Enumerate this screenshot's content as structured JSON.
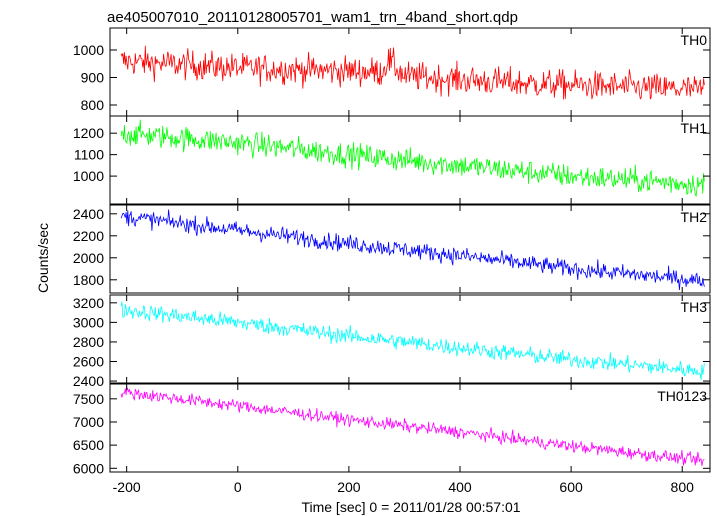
{
  "chart_data": {
    "type": "line",
    "title": "ae405007010_20110128005701_wam1_trn_4band_short.qdp",
    "xlabel": "Time [sec] 0 = 2011/01/28 00:57:01",
    "ylabel": "Counts/sec",
    "xlim": [
      -230,
      850
    ],
    "xticks": [
      -200,
      0,
      200,
      400,
      600,
      800
    ],
    "grid": false,
    "panels": [
      {
        "name": "TH0",
        "color": "#ff0000",
        "ylim": [
          760,
          1080
        ],
        "yticks": [
          800,
          900,
          1000
        ],
        "trend": [
          [
            -210,
            960
          ],
          [
            0,
            935
          ],
          [
            260,
            920
          ],
          [
            270,
            965
          ],
          [
            300,
            905
          ],
          [
            500,
            880
          ],
          [
            700,
            865
          ],
          [
            840,
            855
          ]
        ],
        "noise": 38
      },
      {
        "name": "TH1",
        "color": "#00ff00",
        "ylim": [
          870,
          1280
        ],
        "yticks": [
          1000,
          1100,
          1200
        ],
        "trend": [
          [
            -210,
            1200
          ],
          [
            0,
            1155
          ],
          [
            200,
            1100
          ],
          [
            400,
            1050
          ],
          [
            600,
            1000
          ],
          [
            840,
            960
          ]
        ],
        "noise": 40
      },
      {
        "name": "TH2",
        "color": "#0000ff",
        "ylim": [
          1680,
          2480
        ],
        "yticks": [
          1800,
          2000,
          2200,
          2400
        ],
        "trend": [
          [
            -210,
            2380
          ],
          [
            0,
            2250
          ],
          [
            200,
            2130
          ],
          [
            400,
            2020
          ],
          [
            600,
            1900
          ],
          [
            840,
            1790
          ]
        ],
        "noise": 55
      },
      {
        "name": "TH3",
        "color": "#00ffff",
        "ylim": [
          2380,
          3280
        ],
        "yticks": [
          2400,
          2600,
          2800,
          3000,
          3200
        ],
        "trend": [
          [
            -210,
            3130
          ],
          [
            0,
            3000
          ],
          [
            200,
            2860
          ],
          [
            400,
            2740
          ],
          [
            600,
            2620
          ],
          [
            840,
            2500
          ]
        ],
        "noise": 60
      },
      {
        "name": "TH0123",
        "color": "#ff00ff",
        "ylim": [
          5920,
          7820
        ],
        "yticks": [
          6000,
          6500,
          7000,
          7500
        ],
        "trend": [
          [
            -210,
            7650
          ],
          [
            0,
            7350
          ],
          [
            200,
            7050
          ],
          [
            400,
            6780
          ],
          [
            600,
            6480
          ],
          [
            840,
            6160
          ]
        ],
        "noise": 95
      }
    ],
    "sample_step_sec": 1.5
  }
}
